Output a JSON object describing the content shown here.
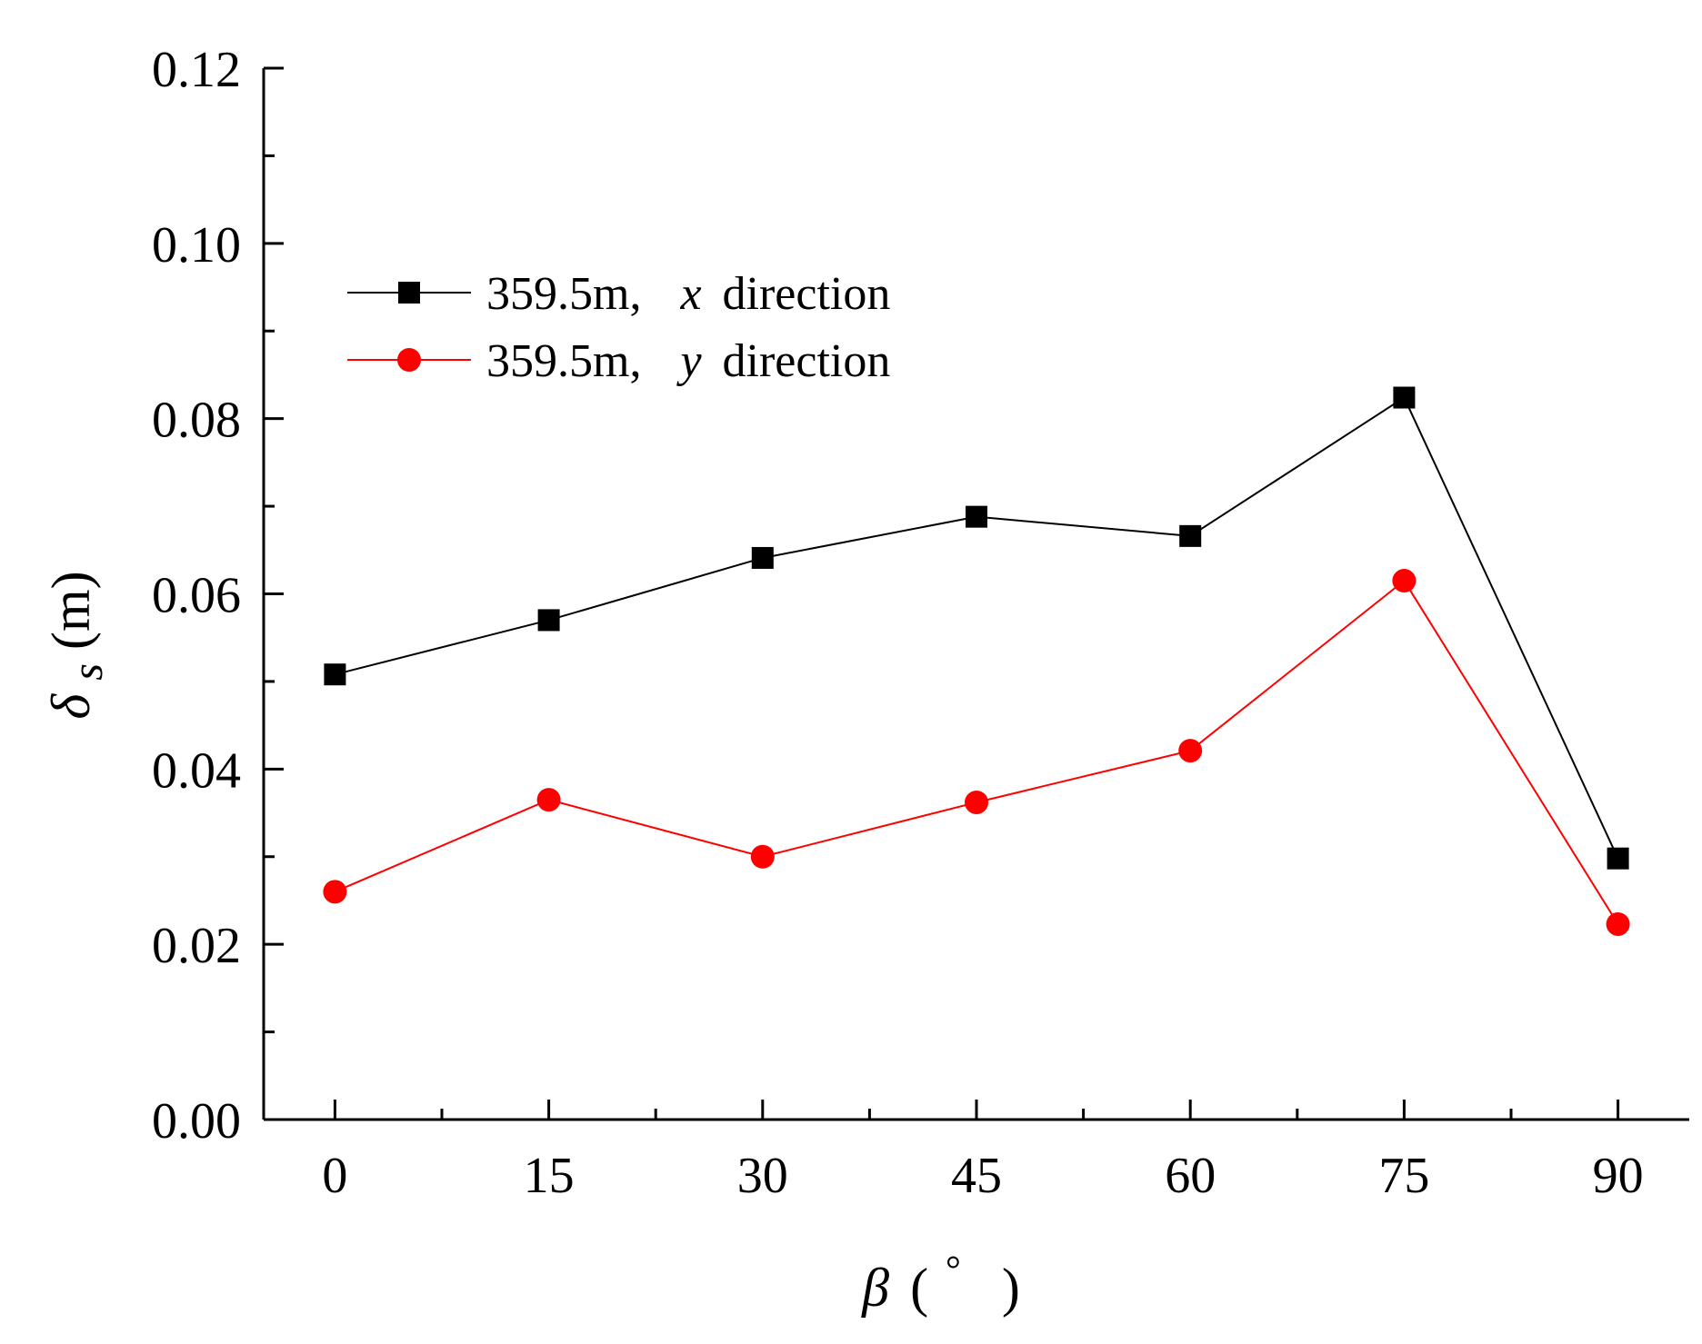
{
  "chart_data": {
    "type": "line",
    "title": "",
    "xlabel": {
      "symbol": "β",
      "unit_open": "(",
      "unit": "°",
      "unit_close": ")"
    },
    "ylabel": {
      "symbol": "δ",
      "subscript": "s",
      "unit": "(m)"
    },
    "x": [
      0,
      15,
      30,
      45,
      60,
      75,
      90
    ],
    "x_tick_labels": [
      "0",
      "15",
      "30",
      "45",
      "60",
      "75",
      "90"
    ],
    "xlim": [
      -5,
      95
    ],
    "y_tick_labels": [
      "0.00",
      "0.02",
      "0.04",
      "0.06",
      "0.08",
      "0.10",
      "0.12"
    ],
    "y_ticks": [
      0,
      0.02,
      0.04,
      0.06,
      0.08,
      0.1,
      0.12
    ],
    "ylim": [
      0,
      0.12
    ],
    "grid": false,
    "legend_position": "upper-left",
    "series": [
      {
        "name": "359.5m,  x direction",
        "label_prefix": "359.5m,",
        "label_axis": "x",
        "label_suffix": "direction",
        "color": "#000000",
        "marker": "square",
        "values": [
          0.0508,
          0.057,
          0.0641,
          0.0688,
          0.0666,
          0.0824,
          0.0298
        ]
      },
      {
        "name": "359.5m,  y direction",
        "label_prefix": "359.5m,",
        "label_axis": "y",
        "label_suffix": "direction",
        "color": "#ff0000",
        "marker": "circle",
        "values": [
          0.026,
          0.0365,
          0.03,
          0.0362,
          0.0421,
          0.0615,
          0.0223
        ]
      }
    ]
  }
}
